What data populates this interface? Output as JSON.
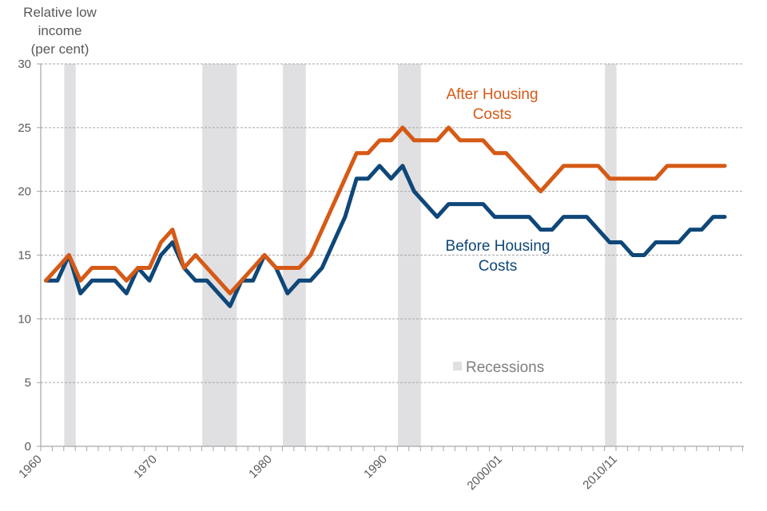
{
  "chart_data": {
    "type": "line",
    "title": "",
    "ylabel": "Relative low income (per cent)",
    "ylabel_lines": [
      "Relative low income",
      "(per cent)"
    ],
    "xlabel": "",
    "ylim": [
      0,
      30
    ],
    "yticks": [
      0,
      5,
      10,
      15,
      20,
      25,
      30
    ],
    "grid": true,
    "x_start_year": 1960,
    "x_end_year": 2021,
    "xtick_labels": [
      {
        "year": 1960,
        "label": "1960"
      },
      {
        "year": 1970,
        "label": "1970"
      },
      {
        "year": 1980,
        "label": "1980"
      },
      {
        "year": 1990,
        "label": "1990"
      },
      {
        "year": 2000,
        "label": "2000/01"
      },
      {
        "year": 2010,
        "label": "2010/11"
      }
    ],
    "x": [
      1961,
      1962,
      1963,
      1964,
      1965,
      1966,
      1967,
      1968,
      1969,
      1970,
      1971,
      1972,
      1973,
      1974,
      1975,
      1976,
      1977,
      1978,
      1979,
      1980,
      1981,
      1982,
      1983,
      1984,
      1985,
      1986,
      1987,
      1988,
      1989,
      1990,
      1991,
      1992,
      1993,
      1994,
      1995,
      1996,
      1997,
      1998,
      1999,
      2000,
      2001,
      2002,
      2003,
      2004,
      2005,
      2006,
      2007,
      2008,
      2009,
      2010,
      2011,
      2012,
      2013,
      2014,
      2015,
      2016,
      2017,
      2018,
      2019,
      2020
    ],
    "series": [
      {
        "name": "After Housing Costs",
        "label_lines": [
          "After Housing",
          "Costs"
        ],
        "color": "#d55a16",
        "values": [
          13,
          14,
          15,
          13,
          14,
          14,
          14,
          13,
          14,
          14,
          16,
          17,
          14,
          15,
          14,
          13,
          12,
          13,
          14,
          15,
          14,
          14,
          14,
          15,
          17,
          19,
          21,
          23,
          23,
          24,
          24,
          25,
          24,
          24,
          24,
          25,
          24,
          24,
          24,
          23,
          23,
          22,
          21,
          20,
          21,
          22,
          22,
          22,
          22,
          21,
          21,
          21,
          21,
          21,
          22,
          22,
          22,
          22,
          22,
          22
        ]
      },
      {
        "name": "Before Housing Costs",
        "label_lines": [
          "Before Housing",
          "Costs"
        ],
        "color": "#0f4778",
        "values": [
          13,
          13,
          15,
          12,
          13,
          13,
          13,
          12,
          14,
          13,
          15,
          16,
          14,
          13,
          13,
          12,
          11,
          13,
          13,
          15,
          14,
          12,
          13,
          13,
          14,
          16,
          18,
          21,
          21,
          22,
          21,
          22,
          20,
          19,
          18,
          19,
          19,
          19,
          19,
          18,
          18,
          18,
          18,
          17,
          17,
          18,
          18,
          18,
          17,
          16,
          16,
          15,
          15,
          16,
          16,
          16,
          17,
          17,
          18,
          18
        ]
      }
    ],
    "recessions": [
      [
        1961.0,
        1962.0
      ],
      [
        1973.0,
        1976.0
      ],
      [
        1980.0,
        1982.0
      ],
      [
        1990.0,
        1992.0
      ],
      [
        2008.0,
        2009.0
      ]
    ],
    "legend": {
      "label": "Recessions",
      "color": "#e0e0e2",
      "placement": "bottom-center"
    }
  }
}
